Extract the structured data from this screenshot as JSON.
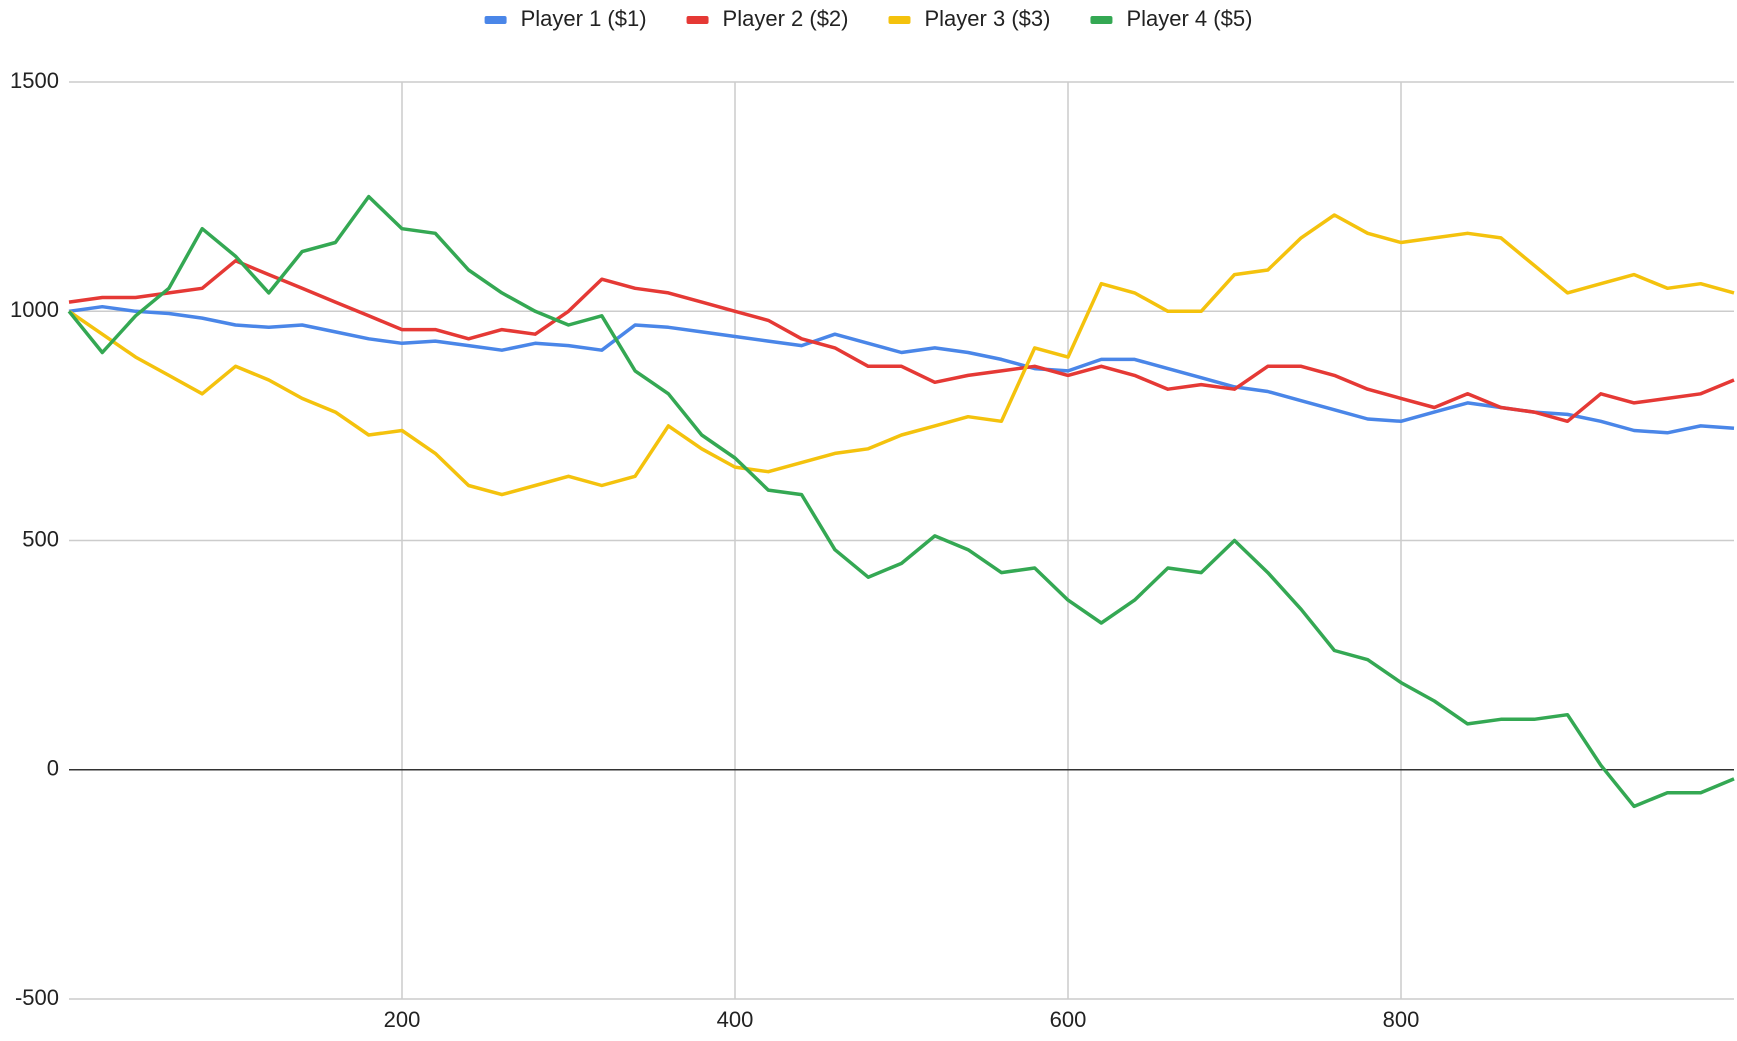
{
  "chart_data": {
    "type": "line",
    "x": [
      0,
      20,
      40,
      60,
      80,
      100,
      120,
      140,
      160,
      180,
      200,
      220,
      240,
      260,
      280,
      300,
      320,
      340,
      360,
      380,
      400,
      420,
      440,
      460,
      480,
      500,
      520,
      540,
      560,
      580,
      600,
      620,
      640,
      660,
      680,
      700,
      720,
      740,
      760,
      780,
      800,
      820,
      840,
      860,
      880,
      900,
      920,
      940,
      960,
      980,
      1000
    ],
    "series": [
      {
        "name": "Player 1 ($1)",
        "color": "#4a86e8",
        "values": [
          1000,
          1010,
          1000,
          995,
          985,
          970,
          965,
          970,
          955,
          940,
          930,
          935,
          925,
          915,
          930,
          925,
          915,
          970,
          965,
          955,
          945,
          935,
          925,
          950,
          930,
          910,
          920,
          910,
          895,
          875,
          870,
          895,
          895,
          875,
          855,
          835,
          825,
          805,
          785,
          765,
          760,
          780,
          800,
          790,
          780,
          775,
          760,
          740,
          735,
          750,
          745
        ]
      },
      {
        "name": "Player 2 ($2)",
        "color": "#e53935",
        "values": [
          1020,
          1030,
          1030,
          1040,
          1050,
          1110,
          1080,
          1050,
          1020,
          990,
          960,
          960,
          940,
          960,
          950,
          1000,
          1070,
          1050,
          1040,
          1020,
          1000,
          980,
          940,
          920,
          880,
          880,
          845,
          860,
          870,
          880,
          860,
          880,
          860,
          830,
          840,
          830,
          880,
          880,
          860,
          830,
          810,
          790,
          820,
          790,
          780,
          760,
          820,
          800,
          810,
          820,
          850
        ]
      },
      {
        "name": "Player 3 ($3)",
        "color": "#f4c20d",
        "values": [
          1000,
          950,
          900,
          860,
          820,
          880,
          850,
          810,
          780,
          730,
          740,
          690,
          620,
          600,
          620,
          640,
          620,
          640,
          750,
          700,
          660,
          650,
          670,
          690,
          700,
          730,
          750,
          770,
          760,
          920,
          900,
          1060,
          1040,
          1000,
          1000,
          1080,
          1090,
          1160,
          1210,
          1170,
          1150,
          1160,
          1170,
          1160,
          1100,
          1040,
          1060,
          1080,
          1050,
          1060,
          1040
        ]
      },
      {
        "name": "Player 4 ($5)",
        "color": "#34a853",
        "values": [
          1000,
          910,
          990,
          1050,
          1180,
          1120,
          1040,
          1130,
          1150,
          1250,
          1180,
          1170,
          1090,
          1040,
          1000,
          970,
          990,
          870,
          820,
          730,
          680,
          610,
          600,
          480,
          420,
          450,
          510,
          480,
          430,
          440,
          370,
          320,
          370,
          440,
          430,
          500,
          430,
          350,
          260,
          240,
          190,
          150,
          100,
          110,
          110,
          120,
          10,
          -80,
          -50,
          -50,
          -20
        ]
      }
    ],
    "xlim": [
      0,
      1000
    ],
    "xticks": [
      200,
      400,
      600,
      800
    ],
    "ylim": [
      -500,
      1500
    ],
    "yticks": [
      -500,
      0,
      500,
      1000,
      1500
    ],
    "grid": true,
    "legend": "top"
  }
}
